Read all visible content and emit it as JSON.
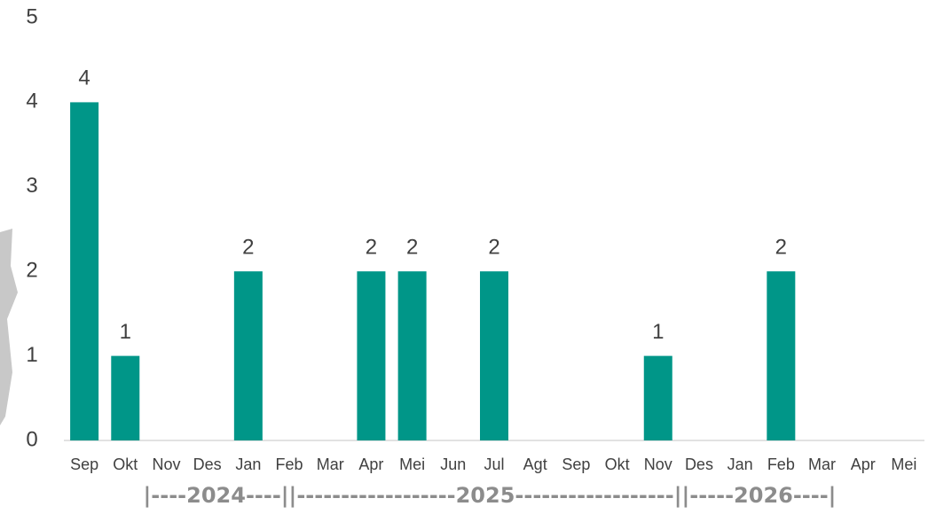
{
  "chart_data": {
    "type": "bar",
    "categories": [
      "Sep",
      "Okt",
      "Nov",
      "Des",
      "Jan",
      "Feb",
      "Mar",
      "Apr",
      "Mei",
      "Jun",
      "Jul",
      "Agt",
      "Sep",
      "Okt",
      "Nov",
      "Des",
      "Jan",
      "Feb",
      "Mar",
      "Apr",
      "Mei"
    ],
    "values": [
      4,
      1,
      0,
      0,
      2,
      0,
      0,
      2,
      2,
      0,
      2,
      0,
      0,
      0,
      1,
      0,
      0,
      2,
      0,
      0,
      0
    ],
    "value_labels": [
      "4",
      "1",
      null,
      null,
      "2",
      null,
      null,
      "2",
      "2",
      null,
      "2",
      null,
      null,
      null,
      "1",
      null,
      null,
      "2",
      null,
      null,
      null
    ],
    "color": "#009688",
    "ylim": [
      0,
      5
    ],
    "yticks": [
      0,
      1,
      2,
      3,
      4,
      5
    ],
    "grid": false,
    "x_group_label": "|----2024----||------------------2025------------------||-----2026----|"
  }
}
